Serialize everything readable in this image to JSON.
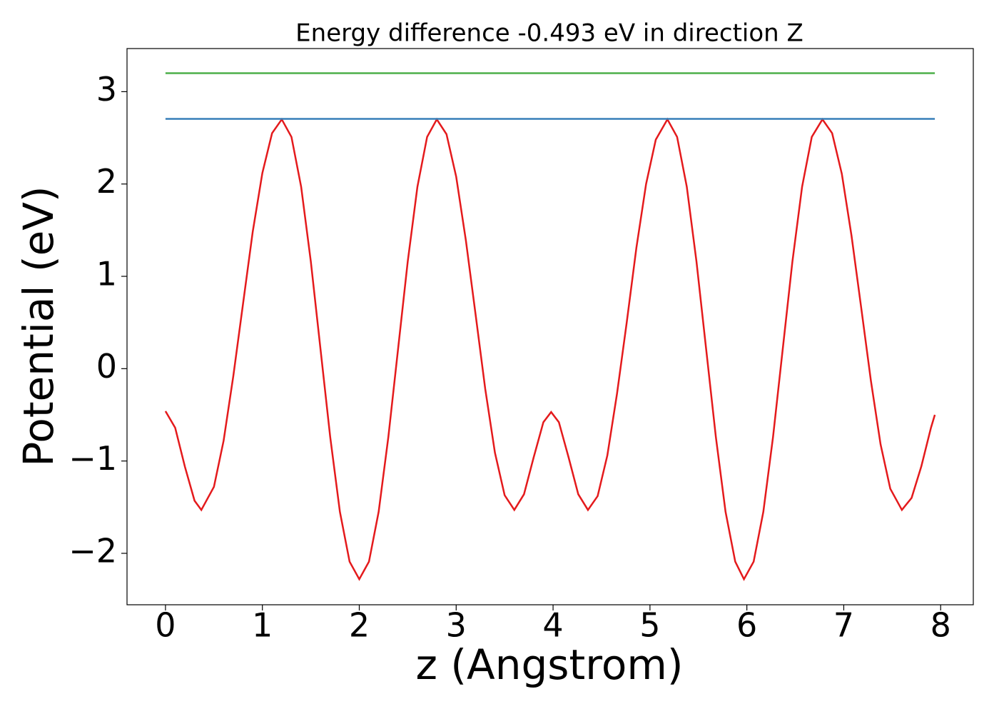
{
  "chart_data": {
    "type": "line",
    "title": "Energy difference -0.493 eV in direction Z",
    "xlabel": "z (Angstrom)",
    "ylabel": "Potential (eV)",
    "xlim": [
      -0.397,
      8.337
    ],
    "ylim": [
      -2.557,
      3.467
    ],
    "xticks": [
      0,
      1,
      2,
      3,
      4,
      5,
      6,
      7,
      8
    ],
    "yticks": [
      {
        "value": -2,
        "label": "−2"
      },
      {
        "value": -1,
        "label": "−1"
      },
      0,
      1,
      2,
      3
    ],
    "series": [
      {
        "color": "#e41a1c",
        "x": [
          0,
          0.1,
          0.2,
          0.3,
          0.37,
          0.5,
          0.6,
          0.7,
          0.8,
          0.9,
          1.0,
          1.1,
          1.2,
          1.3,
          1.4,
          1.5,
          1.6,
          1.7,
          1.8,
          1.9,
          2.0,
          2.1,
          2.2,
          2.3,
          2.4,
          2.5,
          2.6,
          2.7,
          2.8,
          2.9,
          3.0,
          3.1,
          3.2,
          3.3,
          3.4,
          3.5,
          3.6,
          3.7,
          3.8,
          3.9,
          3.98,
          4.06,
          4.16,
          4.26,
          4.36,
          4.46,
          4.56,
          4.66,
          4.76,
          4.86,
          4.96,
          5.06,
          5.18,
          5.28,
          5.38,
          5.48,
          5.58,
          5.68,
          5.78,
          5.88,
          5.97,
          6.07,
          6.17,
          6.27,
          6.37,
          6.47,
          6.57,
          6.67,
          6.78,
          6.88,
          6.98,
          7.08,
          7.18,
          7.28,
          7.38,
          7.48,
          7.6,
          7.7,
          7.8,
          7.9,
          7.94
        ],
        "values": [
          -0.46,
          -0.64,
          -1.06,
          -1.43,
          -1.53,
          -1.28,
          -0.78,
          -0.08,
          0.7,
          1.48,
          2.12,
          2.55,
          2.7,
          2.51,
          1.97,
          1.16,
          0.21,
          -0.74,
          -1.55,
          -2.09,
          -2.28,
          -2.09,
          -1.55,
          -0.74,
          0.21,
          1.16,
          1.97,
          2.51,
          2.7,
          2.54,
          2.08,
          1.39,
          0.59,
          -0.22,
          -0.91,
          -1.37,
          -1.53,
          -1.36,
          -0.96,
          -0.58,
          -0.47,
          -0.58,
          -0.96,
          -1.36,
          -1.53,
          -1.38,
          -0.94,
          -0.27,
          0.5,
          1.31,
          2.0,
          2.48,
          2.7,
          2.51,
          1.97,
          1.16,
          0.21,
          -0.74,
          -1.55,
          -2.09,
          -2.28,
          -2.09,
          -1.55,
          -0.74,
          0.21,
          1.16,
          1.97,
          2.51,
          2.7,
          2.55,
          2.11,
          1.44,
          0.66,
          -0.13,
          -0.82,
          -1.3,
          -1.53,
          -1.4,
          -1.06,
          -0.64,
          -0.5
        ]
      },
      {
        "color": "#377eb8",
        "x": [
          0,
          7.94
        ],
        "values": [
          2.705,
          2.705
        ]
      },
      {
        "color": "#4daf4a",
        "x": [
          0,
          7.94
        ],
        "values": [
          3.2,
          3.2
        ]
      }
    ]
  }
}
